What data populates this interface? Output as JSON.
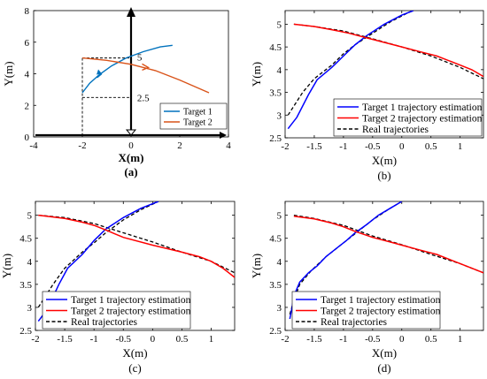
{
  "chart_data": [
    {
      "id": "a",
      "type": "line",
      "caption": "(a)",
      "xlabel": "X(m)",
      "ylabel": "Y(m)",
      "xlim": [
        -4,
        4
      ],
      "ylim": [
        0,
        8
      ],
      "xticks": [
        "-4",
        "-2",
        "0",
        "2",
        "4"
      ],
      "yticks": [
        "0",
        "2",
        "4",
        "6",
        "8"
      ],
      "annotations": [
        "5",
        "2.5"
      ],
      "legend": {
        "position": "bottom-right"
      },
      "series": [
        {
          "name": "Target 1",
          "color": "#0072BD",
          "points": [
            [
              -2.0,
              2.8
            ],
            [
              -1.7,
              3.4
            ],
            [
              -1.3,
              3.95
            ],
            [
              -0.8,
              4.5
            ],
            [
              -0.2,
              5.0
            ],
            [
              0.5,
              5.4
            ],
            [
              1.2,
              5.7
            ],
            [
              1.7,
              5.8
            ]
          ]
        },
        {
          "name": "Target 2",
          "color": "#D95319",
          "points": [
            [
              -2.0,
              5.0
            ],
            [
              -1.0,
              4.85
            ],
            [
              0.0,
              4.6
            ],
            [
              1.0,
              4.2
            ],
            [
              2.0,
              3.6
            ],
            [
              3.2,
              2.8
            ]
          ]
        }
      ],
      "guides": [
        "dashed box x -2..0, y 2.5..5",
        "vertical arrow at x=0",
        "horizontal axis arrow"
      ]
    },
    {
      "id": "b",
      "type": "line",
      "caption": "(b)",
      "xlabel": "X(m)",
      "ylabel": "Y(m)",
      "xlim": [
        -2,
        1.4
      ],
      "ylim": [
        2.5,
        5.3
      ],
      "xticks": [
        "-2",
        "-1.5",
        "-1",
        "-0.5",
        "0",
        "0.5",
        "1"
      ],
      "yticks": [
        "2.5",
        "3",
        "3.5",
        "4",
        "4.5",
        "5"
      ],
      "legend": {
        "position": "bottom-right"
      },
      "series": [
        {
          "name": "Target 1 trajectory estimation",
          "color": "#0000FF",
          "style": "solid",
          "points": [
            [
              -1.95,
              2.7
            ],
            [
              -1.8,
              2.95
            ],
            [
              -1.6,
              3.45
            ],
            [
              -1.45,
              3.78
            ],
            [
              -1.2,
              4.05
            ],
            [
              -1.0,
              4.3
            ],
            [
              -0.8,
              4.55
            ],
            [
              -0.6,
              4.75
            ],
            [
              -0.3,
              5.0
            ],
            [
              0.0,
              5.2
            ],
            [
              0.2,
              5.3
            ]
          ]
        },
        {
          "name": "Target 2 trajectory estimation",
          "color": "#FF0000",
          "style": "solid",
          "points": [
            [
              -1.85,
              5.0
            ],
            [
              -1.5,
              4.95
            ],
            [
              -1.2,
              4.88
            ],
            [
              -0.9,
              4.8
            ],
            [
              -0.6,
              4.7
            ],
            [
              -0.3,
              4.6
            ],
            [
              0.0,
              4.5
            ],
            [
              0.3,
              4.4
            ],
            [
              0.6,
              4.3
            ],
            [
              0.9,
              4.15
            ],
            [
              1.2,
              4.0
            ],
            [
              1.4,
              3.85
            ]
          ]
        },
        {
          "name": "Real trajectories",
          "color": "#000000",
          "style": "dashed",
          "points_t1": [
            [
              -1.95,
              3.0
            ],
            [
              -1.7,
              3.5
            ],
            [
              -1.5,
              3.8
            ],
            [
              -1.2,
              4.1
            ],
            [
              -1.0,
              4.35
            ],
            [
              -0.8,
              4.55
            ],
            [
              -0.5,
              4.8
            ],
            [
              -0.2,
              5.05
            ],
            [
              0.1,
              5.25
            ],
            [
              0.2,
              5.3
            ]
          ],
          "points_t2": [
            [
              -1.85,
              5.0
            ],
            [
              -1.5,
              4.95
            ],
            [
              -1.0,
              4.85
            ],
            [
              -0.5,
              4.68
            ],
            [
              0.0,
              4.5
            ],
            [
              0.5,
              4.3
            ],
            [
              1.0,
              4.05
            ],
            [
              1.4,
              3.8
            ]
          ]
        }
      ]
    },
    {
      "id": "c",
      "type": "line",
      "caption": "(c)",
      "xlabel": "X(m)",
      "ylabel": "Y(m)",
      "xlim": [
        -2,
        1.4
      ],
      "ylim": [
        2.5,
        5.3
      ],
      "xticks": [
        "-2",
        "-1.5",
        "-1",
        "-0.5",
        "0",
        "0.5",
        "1"
      ],
      "yticks": [
        "2.5",
        "3",
        "3.5",
        "4",
        "4.5",
        "5"
      ],
      "legend": {
        "position": "bottom-left"
      },
      "series": [
        {
          "name": "Target 1 trajectory estimation",
          "color": "#0000FF",
          "style": "solid",
          "points": [
            [
              -1.95,
              2.7
            ],
            [
              -1.8,
              2.95
            ],
            [
              -1.6,
              3.5
            ],
            [
              -1.45,
              3.85
            ],
            [
              -1.2,
              4.15
            ],
            [
              -1.0,
              4.45
            ],
            [
              -0.8,
              4.7
            ],
            [
              -0.5,
              4.95
            ],
            [
              -0.2,
              5.15
            ],
            [
              0.1,
              5.3
            ]
          ]
        },
        {
          "name": "Target 2 trajectory estimation",
          "color": "#FF0000",
          "style": "solid",
          "points": [
            [
              -1.95,
              5.0
            ],
            [
              -1.5,
              4.93
            ],
            [
              -1.2,
              4.85
            ],
            [
              -1.0,
              4.78
            ],
            [
              -0.8,
              4.68
            ],
            [
              -0.5,
              4.52
            ],
            [
              0.0,
              4.35
            ],
            [
              0.5,
              4.2
            ],
            [
              0.8,
              4.1
            ],
            [
              1.0,
              4.0
            ],
            [
              1.2,
              3.85
            ],
            [
              1.4,
              3.65
            ]
          ]
        },
        {
          "name": "Real trajectories",
          "color": "#000000",
          "style": "dashed",
          "points_t1": [
            [
              -1.95,
              3.0
            ],
            [
              -1.7,
              3.5
            ],
            [
              -1.5,
              3.85
            ],
            [
              -1.2,
              4.2
            ],
            [
              -1.0,
              4.4
            ],
            [
              -0.8,
              4.62
            ],
            [
              -0.5,
              4.9
            ],
            [
              -0.2,
              5.12
            ],
            [
              0.1,
              5.3
            ]
          ],
          "points_t2": [
            [
              -1.95,
              5.0
            ],
            [
              -1.5,
              4.95
            ],
            [
              -1.0,
              4.82
            ],
            [
              -0.5,
              4.62
            ],
            [
              0.0,
              4.42
            ],
            [
              0.5,
              4.2
            ],
            [
              1.0,
              4.0
            ],
            [
              1.4,
              3.75
            ]
          ]
        }
      ]
    },
    {
      "id": "d",
      "type": "line",
      "caption": "(d)",
      "xlabel": "X(m)",
      "ylabel": "Y(m)",
      "xlim": [
        -2,
        1.4
      ],
      "ylim": [
        2.5,
        5.3
      ],
      "xticks": [
        "-2",
        "-1.5",
        "-1",
        "-0.5",
        "0",
        "0.5",
        "1"
      ],
      "yticks": [
        "2.5",
        "3",
        "3.5",
        "4",
        "4.5",
        "5"
      ],
      "legend": {
        "position": "bottom-left"
      },
      "series": [
        {
          "name": "Target 1 trajectory estimation",
          "color": "#0000FF",
          "style": "solid",
          "points": [
            [
              -1.92,
              2.75
            ],
            [
              -1.88,
              3.0
            ],
            [
              -1.85,
              3.25
            ],
            [
              -1.75,
              3.55
            ],
            [
              -1.6,
              3.75
            ],
            [
              -1.45,
              3.9
            ],
            [
              -1.3,
              4.1
            ],
            [
              -1.1,
              4.3
            ],
            [
              -0.95,
              4.45
            ],
            [
              -0.8,
              4.62
            ],
            [
              -0.6,
              4.8
            ],
            [
              -0.4,
              5.0
            ],
            [
              -0.2,
              5.15
            ],
            [
              0.0,
              5.3
            ]
          ]
        },
        {
          "name": "Target 2 trajectory estimation",
          "color": "#FF0000",
          "style": "solid",
          "points": [
            [
              -1.85,
              4.98
            ],
            [
              -1.5,
              4.92
            ],
            [
              -1.2,
              4.83
            ],
            [
              -1.0,
              4.75
            ],
            [
              -0.8,
              4.65
            ],
            [
              -0.5,
              4.52
            ],
            [
              -0.2,
              4.42
            ],
            [
              0.0,
              4.35
            ],
            [
              0.3,
              4.25
            ],
            [
              0.6,
              4.15
            ],
            [
              0.9,
              4.0
            ],
            [
              1.2,
              3.85
            ],
            [
              1.4,
              3.75
            ]
          ]
        },
        {
          "name": "Real trajectories",
          "color": "#000000",
          "style": "dashed",
          "points_t1": [
            [
              -1.92,
              2.85
            ],
            [
              -1.85,
              3.15
            ],
            [
              -1.75,
              3.5
            ],
            [
              -1.55,
              3.8
            ],
            [
              -1.3,
              4.1
            ],
            [
              -1.05,
              4.35
            ],
            [
              -0.8,
              4.6
            ],
            [
              -0.5,
              4.9
            ],
            [
              -0.2,
              5.15
            ],
            [
              0.0,
              5.3
            ]
          ],
          "points_t2": [
            [
              -1.85,
              5.0
            ],
            [
              -1.5,
              4.93
            ],
            [
              -1.0,
              4.78
            ],
            [
              -0.5,
              4.55
            ],
            [
              0.0,
              4.36
            ],
            [
              0.5,
              4.15
            ],
            [
              1.0,
              3.95
            ],
            [
              1.4,
              3.75
            ]
          ]
        }
      ]
    }
  ]
}
